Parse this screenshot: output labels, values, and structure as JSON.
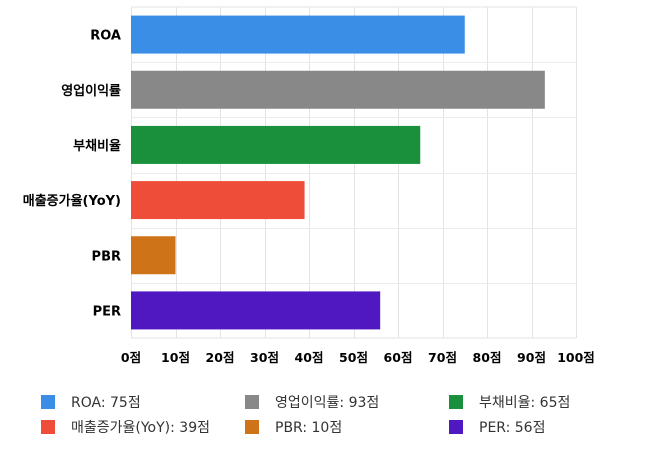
{
  "chart_data": {
    "type": "bar",
    "orientation": "horizontal",
    "categories": [
      "ROA",
      "영업이익률",
      "부채비율",
      "매출증가율(YoY)",
      "PBR",
      "PER"
    ],
    "values": [
      75,
      93,
      65,
      39,
      10,
      56
    ],
    "colors": [
      "#3a8ee6",
      "#888888",
      "#1a8f3c",
      "#ee4d3a",
      "#cf7318",
      "#5018c0"
    ],
    "xlim": [
      0,
      100
    ],
    "xticks": [
      0,
      10,
      20,
      30,
      40,
      50,
      60,
      70,
      80,
      90,
      100
    ],
    "tick_suffix": "점",
    "grid": true,
    "legend_position": "bottom",
    "legend": [
      {
        "label": "ROA: 75점",
        "color": "#3a8ee6"
      },
      {
        "label": "영업이익률: 93점",
        "color": "#888888"
      },
      {
        "label": "부채비율: 65점",
        "color": "#1a8f3c"
      },
      {
        "label": "매출증가율(YoY): 39점",
        "color": "#ee4d3a"
      },
      {
        "label": "PBR: 10점",
        "color": "#cf7318"
      },
      {
        "label": "PER: 56점",
        "color": "#5018c0"
      }
    ]
  }
}
